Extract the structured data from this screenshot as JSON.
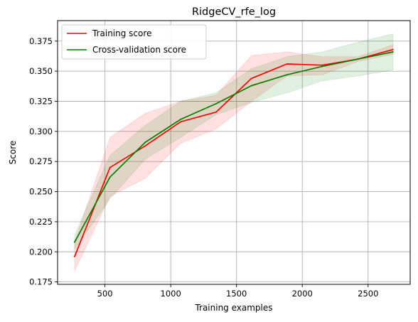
{
  "chart_data": {
    "type": "line",
    "title": "RidgeCV_rfe_log",
    "xlabel": "Training examples",
    "ylabel": "Score",
    "xlim": [
      140,
      2820
    ],
    "ylim": [
      0.173,
      0.392
    ],
    "xticks": [
      500,
      1000,
      1500,
      2000,
      2500
    ],
    "xtick_labels": [
      "500",
      "1000",
      "1500",
      "2000",
      "2500"
    ],
    "yticks": [
      0.175,
      0.2,
      0.225,
      0.25,
      0.275,
      0.3,
      0.325,
      0.35,
      0.375
    ],
    "ytick_labels": [
      "0.175",
      "0.200",
      "0.225",
      "0.250",
      "0.275",
      "0.300",
      "0.325",
      "0.350",
      "0.375"
    ],
    "grid": true,
    "legend_position": "upper-left",
    "x": [
      269,
      538,
      807,
      1076,
      1345,
      1614,
      1883,
      2152,
      2421,
      2690
    ],
    "series": [
      {
        "name": "Training score",
        "color": "#ff0000",
        "values": [
          0.196,
          0.27,
          0.288,
          0.308,
          0.316,
          0.344,
          0.356,
          0.355,
          0.36,
          0.368
        ],
        "upper": [
          0.208,
          0.295,
          0.315,
          0.325,
          0.33,
          0.363,
          0.366,
          0.362,
          0.362,
          0.372
        ],
        "lower": [
          0.184,
          0.246,
          0.261,
          0.29,
          0.302,
          0.325,
          0.346,
          0.347,
          0.358,
          0.364
        ]
      },
      {
        "name": "Cross-validation score",
        "color": "#008000",
        "values": [
          0.208,
          0.262,
          0.291,
          0.31,
          0.323,
          0.338,
          0.347,
          0.354,
          0.36,
          0.366
        ],
        "upper": [
          0.214,
          0.28,
          0.305,
          0.325,
          0.332,
          0.352,
          0.362,
          0.366,
          0.374,
          0.381
        ],
        "lower": [
          0.202,
          0.244,
          0.277,
          0.295,
          0.314,
          0.324,
          0.332,
          0.342,
          0.346,
          0.351
        ]
      }
    ]
  }
}
